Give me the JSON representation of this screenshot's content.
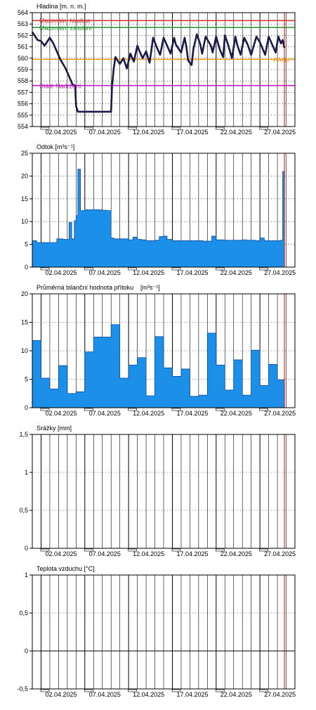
{
  "colors": {
    "level_line": "#1a1a4a",
    "bar_fill": "#1c8fe8",
    "bar_stroke": "#0a4a9a",
    "max_level": "#d43a3a",
    "max_storage": "#2e9a3a",
    "spillway": "#f0a020",
    "fixed_inlet": "#c020c0",
    "today_marker": "#e00000"
  },
  "date_ticks": [
    "02.04.2025",
    "07.04.2025",
    "12.04.2025",
    "17.04.2025",
    "22.04.2025",
    "27.04.2025"
  ],
  "chart_data": [
    {
      "type": "line",
      "title": "Hladina [m. n. m.]",
      "ylim": [
        554,
        564
      ],
      "yticks": [
        "554",
        "555",
        "556",
        "557",
        "558",
        "559",
        "560",
        "561",
        "562",
        "563",
        "564"
      ],
      "reference_lines": [
        {
          "label": "Maximální hladina",
          "value": 563.3,
          "color": "#d43a3a"
        },
        {
          "label": "Maximální zásobní",
          "value": 562.7,
          "color": "#2e9a3a"
        },
        {
          "label": "Přeliv",
          "value": 559.9,
          "color": "#f0a020"
        },
        {
          "label": "Stálé Nadržení",
          "value": 557.6,
          "color": "#c020c0"
        }
      ],
      "series": [
        {
          "x": [
            0,
            0.6,
            1,
            1.4,
            2,
            2.4,
            2.8,
            3.2,
            3.8,
            4.2,
            4.6,
            4.9,
            5,
            5.2,
            6,
            7,
            8,
            9,
            9.1,
            9.3,
            9.5,
            10,
            10.4,
            10.8,
            11.2,
            11.6,
            12,
            12.2,
            12.6,
            13,
            13.4,
            13.8,
            14.2,
            14.6,
            15.0,
            15.4,
            15.8,
            16.2,
            16.4,
            17,
            17.4,
            17.6,
            17.8,
            18.2,
            18.4,
            18.8,
            19.2,
            19.4,
            19.8,
            20.4,
            20.6,
            21,
            21.4,
            21.8,
            22,
            22.4,
            22.8,
            23.2,
            23.4,
            23.8,
            24.2,
            24.6,
            25,
            25.6,
            26,
            26.6,
            27,
            27.4,
            27.8,
            28.1,
            28.4,
            28.6,
            28.8
          ],
          "y": [
            562.3,
            561.6,
            561.5,
            561.1,
            561.8,
            561.3,
            560.6,
            559.9,
            559.1,
            558.4,
            557.7,
            557.6,
            555.8,
            555.3,
            555.3,
            555.3,
            555.3,
            555.3,
            557.4,
            559.1,
            560.1,
            559.5,
            560.0,
            559.1,
            560.4,
            559.7,
            561.1,
            560.7,
            560.0,
            560.6,
            559.6,
            561.8,
            561.0,
            560.3,
            561.8,
            561.1,
            560.4,
            561.8,
            561.2,
            560.5,
            561.8,
            561.0,
            559.8,
            559.4,
            560.8,
            562.1,
            561.2,
            560.4,
            561.9,
            561.1,
            560.5,
            561.9,
            560.8,
            560.1,
            562.0,
            561.1,
            560.0,
            561.9,
            561.2,
            560.3,
            561.8,
            561.2,
            560.3,
            561.9,
            561.4,
            560.3,
            561.9,
            561.2,
            560.5,
            561.9,
            561.3,
            561.6,
            560.9
          ]
        }
      ]
    },
    {
      "type": "area",
      "title": "Odtok [m³s⁻¹]",
      "ylim": [
        0,
        25
      ],
      "yticks": [
        "0",
        "5",
        "10",
        "15",
        "20",
        "25"
      ],
      "series": [
        {
          "x": [
            0,
            0.5,
            2,
            2.8,
            3.5,
            4.2,
            4.5,
            4.8,
            5.0,
            5.2,
            5.5,
            6.0,
            7,
            8,
            8.5,
            9,
            9.3,
            10,
            11,
            11.5,
            12,
            12.5,
            13,
            14,
            14.5,
            15,
            15.4,
            16,
            17,
            18,
            19,
            19.5,
            20,
            20.5,
            21,
            22,
            23,
            24,
            24.5,
            25,
            25.5,
            26,
            26.5,
            27,
            27.5,
            28,
            28.4,
            28.6,
            28.8
          ],
          "y": [
            5.8,
            5.4,
            5.4,
            6.2,
            6.1,
            9.8,
            6.2,
            10.2,
            11.3,
            21.5,
            12.4,
            12.6,
            12.6,
            12.5,
            12.4,
            6.4,
            6.2,
            6.2,
            6.0,
            6.6,
            6.1,
            6.0,
            5.8,
            5.9,
            6.7,
            6.8,
            6.1,
            5.8,
            5.8,
            5.8,
            5.8,
            5.7,
            5.7,
            6.8,
            6.0,
            5.9,
            5.9,
            6.0,
            5.9,
            5.9,
            5.8,
            6.4,
            5.8,
            5.8,
            5.8,
            5.8,
            5.9,
            21.0,
            14.3
          ]
        }
      ]
    },
    {
      "type": "area",
      "title": "Průměrná bilanční hodnota přítoku",
      "unit": "[m³s⁻¹]",
      "ylim": [
        0,
        20
      ],
      "yticks": [
        "0",
        "5",
        "10",
        "15",
        "20"
      ],
      "series": [
        {
          "x": [
            0,
            1,
            2,
            3,
            4,
            5,
            6,
            7,
            8,
            9,
            10,
            11,
            12,
            13,
            14,
            15,
            16,
            17,
            18,
            19,
            20,
            21,
            22,
            23,
            24,
            25,
            26,
            27,
            28,
            28.8
          ],
          "y": [
            11.8,
            5.2,
            3.3,
            7.4,
            2.5,
            2.8,
            9.8,
            12.4,
            12.4,
            14.6,
            5.2,
            7.5,
            8.8,
            2.1,
            12.5,
            7.0,
            5.5,
            6.8,
            2.0,
            2.2,
            13.1,
            7.5,
            3.1,
            8.4,
            2.2,
            10.1,
            3.9,
            7.6,
            4.9,
            4.9
          ]
        }
      ]
    },
    {
      "type": "bar",
      "title": "Srážky [mm]",
      "ylim": [
        0,
        1.5
      ],
      "yticks": [
        "0",
        "0,5",
        "1",
        "1,5"
      ],
      "series": []
    },
    {
      "type": "line",
      "title": "Teplota vzduchu [°C]",
      "ylim": [
        -0.5,
        1
      ],
      "yticks": [
        "-0,5",
        "0",
        "0,5",
        "1"
      ],
      "series": []
    }
  ]
}
